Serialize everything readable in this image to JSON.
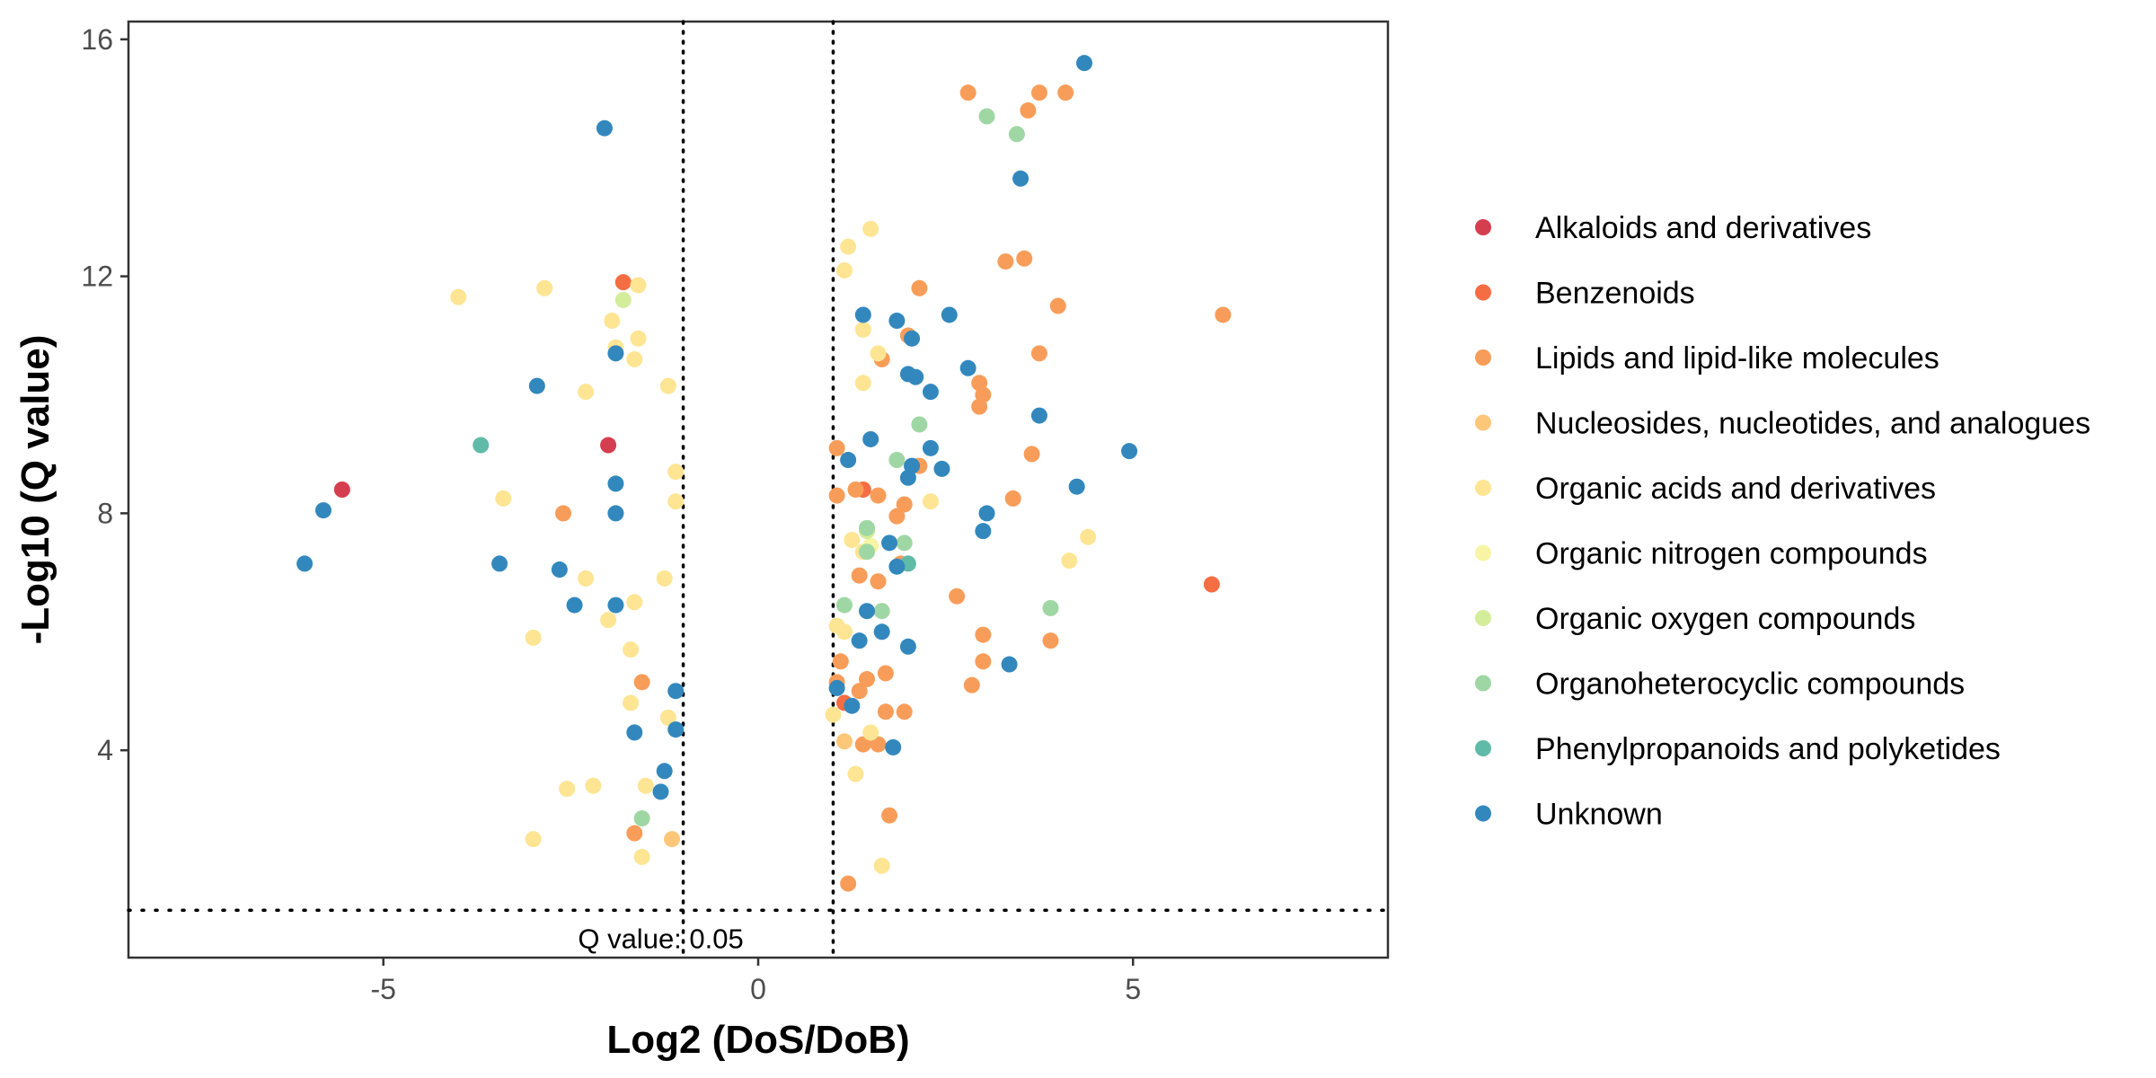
{
  "chart_data": {
    "type": "scatter",
    "xlabel": "Log2 (DoS/DoB)",
    "ylabel": "-Log10 (Q value)",
    "xlim": [
      -8.4,
      8.4
    ],
    "ylim": [
      0.5,
      16.3
    ],
    "xticks": [
      -5,
      0,
      5
    ],
    "yticks": [
      4,
      8,
      12,
      16
    ],
    "grid": false,
    "legend_position": "right",
    "reference_lines": {
      "vertical": [
        -1,
        1
      ],
      "horizontal": [
        1.3
      ]
    },
    "annotation": {
      "text": "Q value: 0.05",
      "x": -1.0,
      "y": 0.75
    },
    "series": [
      {
        "name": "Alkaloids and derivatives",
        "color": "#d53e4f",
        "points": [
          [
            -5.55,
            8.4
          ],
          [
            -2.0,
            9.15
          ]
        ]
      },
      {
        "name": "Benzenoids",
        "color": "#f46d43",
        "points": [
          [
            -1.8,
            11.9
          ],
          [
            1.4,
            8.4
          ],
          [
            6.05,
            6.8
          ],
          [
            1.15,
            4.8
          ]
        ]
      },
      {
        "name": "Lipids and lipid-like molecules",
        "color": "#f89d59",
        "points": [
          [
            2.8,
            15.1
          ],
          [
            3.6,
            14.8
          ],
          [
            3.75,
            15.1
          ],
          [
            4.1,
            15.1
          ],
          [
            3.3,
            12.25
          ],
          [
            3.55,
            12.3
          ],
          [
            2.15,
            11.8
          ],
          [
            4.0,
            11.5
          ],
          [
            6.2,
            11.35
          ],
          [
            2.0,
            11.0
          ],
          [
            1.65,
            10.6
          ],
          [
            3.75,
            10.7
          ],
          [
            2.95,
            10.2
          ],
          [
            3.0,
            10.0
          ],
          [
            2.95,
            9.8
          ],
          [
            1.05,
            9.1
          ],
          [
            3.65,
            9.0
          ],
          [
            2.15,
            8.8
          ],
          [
            1.05,
            8.3
          ],
          [
            1.3,
            8.4
          ],
          [
            1.6,
            8.3
          ],
          [
            1.95,
            8.15
          ],
          [
            3.4,
            8.25
          ],
          [
            1.85,
            7.95
          ],
          [
            1.9,
            7.15
          ],
          [
            1.35,
            6.95
          ],
          [
            1.6,
            6.85
          ],
          [
            2.65,
            6.6
          ],
          [
            3.0,
            5.95
          ],
          [
            3.9,
            5.85
          ],
          [
            1.1,
            5.5
          ],
          [
            3.0,
            5.5
          ],
          [
            1.45,
            5.2
          ],
          [
            1.7,
            5.3
          ],
          [
            1.05,
            5.15
          ],
          [
            1.35,
            5.0
          ],
          [
            2.85,
            5.1
          ],
          [
            1.7,
            4.65
          ],
          [
            1.95,
            4.65
          ],
          [
            1.4,
            4.1
          ],
          [
            1.6,
            4.1
          ],
          [
            1.75,
            2.9
          ],
          [
            1.2,
            1.75
          ],
          [
            -2.6,
            8.0
          ],
          [
            -1.55,
            5.15
          ],
          [
            -1.65,
            2.6
          ]
        ]
      },
      {
        "name": "Nucleosides, nucleotides, and analogues",
        "color": "#fdc779",
        "points": [
          [
            1.15,
            4.15
          ],
          [
            -1.15,
            2.5
          ]
        ]
      },
      {
        "name": "Organic acids and derivatives",
        "color": "#fee593",
        "points": [
          [
            -4.0,
            11.65
          ],
          [
            -2.85,
            11.8
          ],
          [
            -1.6,
            11.85
          ],
          [
            -1.95,
            11.25
          ],
          [
            -1.6,
            10.95
          ],
          [
            -1.9,
            10.8
          ],
          [
            -1.65,
            10.6
          ],
          [
            -2.3,
            10.05
          ],
          [
            -1.2,
            10.15
          ],
          [
            -1.1,
            8.7
          ],
          [
            -3.4,
            8.25
          ],
          [
            -1.1,
            8.2
          ],
          [
            -2.3,
            6.9
          ],
          [
            -1.25,
            6.9
          ],
          [
            -1.65,
            6.5
          ],
          [
            -2.0,
            6.2
          ],
          [
            -3.0,
            5.9
          ],
          [
            -1.7,
            5.7
          ],
          [
            -1.7,
            4.8
          ],
          [
            -1.2,
            4.55
          ],
          [
            -2.55,
            3.35
          ],
          [
            -2.2,
            3.4
          ],
          [
            -1.5,
            3.4
          ],
          [
            -3.0,
            2.5
          ],
          [
            -1.55,
            2.2
          ],
          [
            1.5,
            12.8
          ],
          [
            1.2,
            12.5
          ],
          [
            1.15,
            12.1
          ],
          [
            1.4,
            11.1
          ],
          [
            1.6,
            10.7
          ],
          [
            1.4,
            10.2
          ],
          [
            2.3,
            8.2
          ],
          [
            1.25,
            7.55
          ],
          [
            1.4,
            7.35
          ],
          [
            4.4,
            7.6
          ],
          [
            4.15,
            7.2
          ],
          [
            1.05,
            6.1
          ],
          [
            1.15,
            6.0
          ],
          [
            1.0,
            4.6
          ],
          [
            1.5,
            4.3
          ],
          [
            1.3,
            3.6
          ],
          [
            1.65,
            2.05
          ]
        ]
      },
      {
        "name": "Organic nitrogen compounds",
        "color": "#f7f5a5",
        "points": [
          [
            1.5,
            7.45
          ]
        ]
      },
      {
        "name": "Organic oxygen compounds",
        "color": "#d4ed9a",
        "points": [
          [
            -1.8,
            11.6
          ],
          [
            1.45,
            7.7
          ]
        ]
      },
      {
        "name": "Organoheterocyclic compounds",
        "color": "#9fd7a4",
        "points": [
          [
            3.05,
            14.7
          ],
          [
            3.45,
            14.4
          ],
          [
            2.15,
            9.5
          ],
          [
            1.85,
            8.9
          ],
          [
            1.45,
            7.75
          ],
          [
            1.45,
            7.35
          ],
          [
            1.95,
            7.5
          ],
          [
            1.15,
            6.45
          ],
          [
            1.65,
            6.35
          ],
          [
            3.9,
            6.4
          ],
          [
            -1.55,
            2.85
          ]
        ]
      },
      {
        "name": "Phenylpropanoids and polyketides",
        "color": "#5fbaa8",
        "points": [
          [
            -3.7,
            9.15
          ],
          [
            2.0,
            7.15
          ]
        ]
      },
      {
        "name": "Unknown",
        "color": "#3288bd",
        "points": [
          [
            4.35,
            15.6
          ],
          [
            3.5,
            13.65
          ],
          [
            -2.05,
            14.5
          ],
          [
            1.4,
            11.35
          ],
          [
            1.85,
            11.25
          ],
          [
            2.55,
            11.35
          ],
          [
            2.05,
            10.95
          ],
          [
            2.0,
            10.35
          ],
          [
            2.1,
            10.3
          ],
          [
            2.8,
            10.45
          ],
          [
            2.3,
            10.05
          ],
          [
            3.75,
            9.65
          ],
          [
            4.95,
            9.05
          ],
          [
            1.5,
            9.25
          ],
          [
            1.2,
            8.9
          ],
          [
            2.3,
            9.1
          ],
          [
            2.05,
            8.8
          ],
          [
            2.45,
            8.75
          ],
          [
            2.0,
            8.6
          ],
          [
            4.25,
            8.45
          ],
          [
            3.05,
            8.0
          ],
          [
            3.0,
            7.7
          ],
          [
            1.75,
            7.5
          ],
          [
            1.85,
            7.1
          ],
          [
            1.45,
            6.35
          ],
          [
            1.65,
            6.0
          ],
          [
            1.35,
            5.85
          ],
          [
            2.0,
            5.75
          ],
          [
            3.35,
            5.45
          ],
          [
            1.05,
            5.05
          ],
          [
            1.25,
            4.75
          ],
          [
            1.8,
            4.05
          ],
          [
            -2.95,
            10.15
          ],
          [
            -1.9,
            10.7
          ],
          [
            -3.45,
            7.15
          ],
          [
            -2.65,
            7.05
          ],
          [
            -1.9,
            8.5
          ],
          [
            -1.9,
            8.0
          ],
          [
            -2.45,
            6.45
          ],
          [
            -1.9,
            6.45
          ],
          [
            -1.1,
            5.0
          ],
          [
            -1.65,
            4.3
          ],
          [
            -1.1,
            4.35
          ],
          [
            -1.25,
            3.65
          ],
          [
            -1.3,
            3.3
          ],
          [
            -5.8,
            8.05
          ],
          [
            -6.05,
            7.15
          ]
        ]
      }
    ]
  }
}
